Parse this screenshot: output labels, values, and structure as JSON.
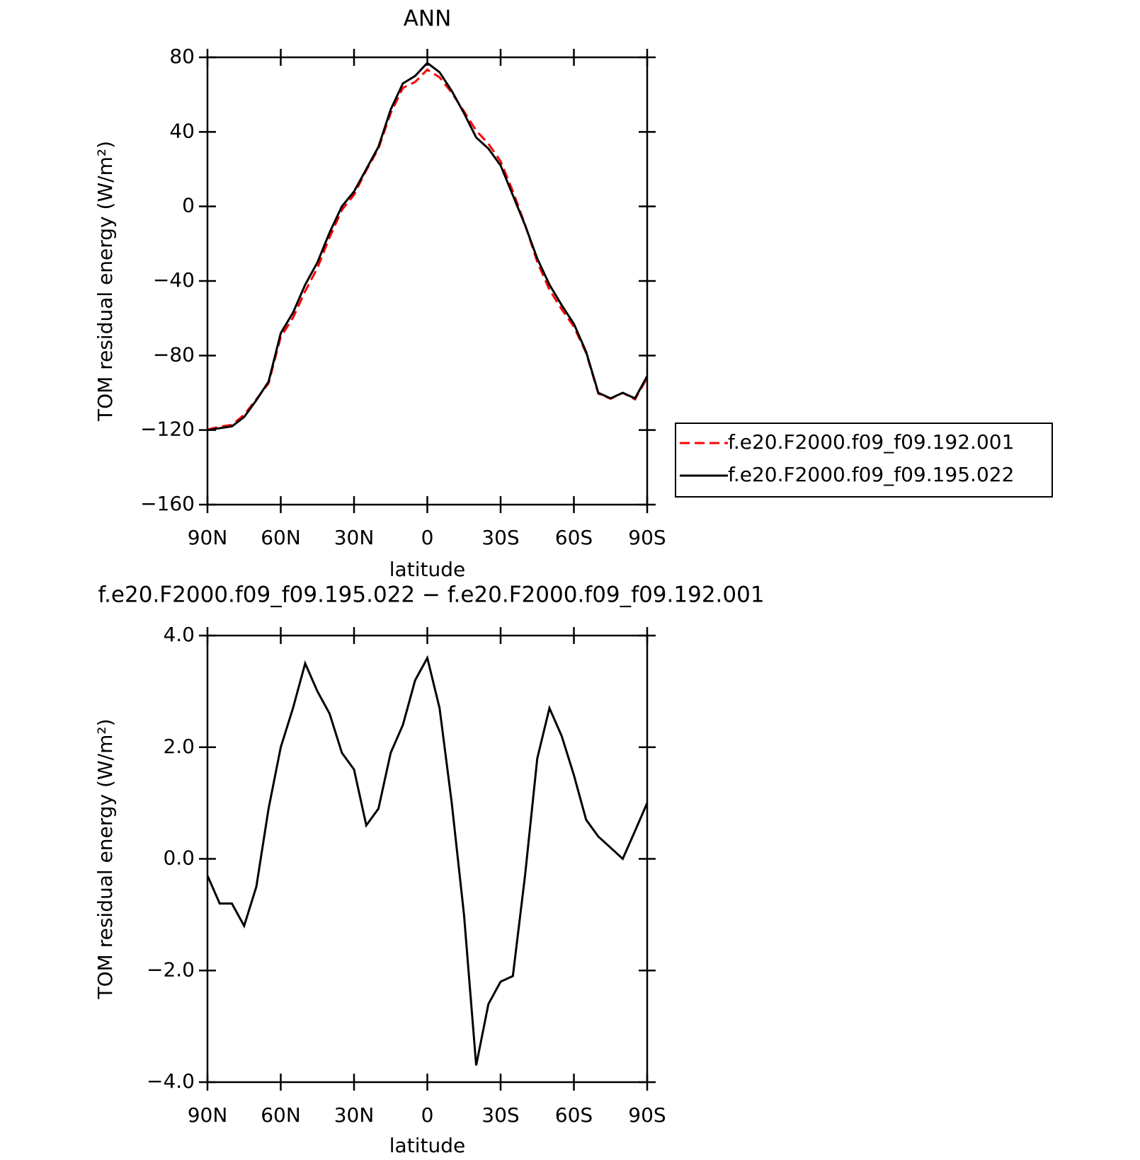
{
  "chart_data": [
    {
      "type": "line",
      "title": "ANN",
      "xlabel": "latitude",
      "ylabel": "TOM residual energy (W/m²)",
      "x": [
        90,
        85,
        80,
        75,
        70,
        65,
        60,
        55,
        50,
        45,
        40,
        35,
        30,
        25,
        20,
        15,
        10,
        5,
        0,
        -5,
        -10,
        -15,
        -20,
        -25,
        -30,
        -35,
        -40,
        -45,
        -50,
        -55,
        -60,
        -65,
        -70,
        -75,
        -80,
        -85,
        -90
      ],
      "xlim": [
        90,
        -90
      ],
      "xticks": [
        {
          "value": 90,
          "label": "90N"
        },
        {
          "value": 60,
          "label": "60N"
        },
        {
          "value": 30,
          "label": "30N"
        },
        0,
        {
          "value": -30,
          "label": "30S"
        },
        {
          "value": -60,
          "label": "60S"
        },
        {
          "value": -90,
          "label": "90S"
        }
      ],
      "ylim": [
        -160,
        80
      ],
      "yticks": [
        {
          "value": -160,
          "label": "−160"
        },
        {
          "value": -120,
          "label": "−120"
        },
        {
          "value": -80,
          "label": "−80"
        },
        {
          "value": -40,
          "label": "−40"
        },
        0,
        40,
        80
      ],
      "legend": "right",
      "series": [
        {
          "name": "f.e20.F2000.f09_f09.192.001",
          "color": "#ff0000",
          "dashed": true,
          "values": [
            -119.7,
            -118.2,
            -117.2,
            -111.8,
            -103.5,
            -94.9,
            -70,
            -59.7,
            -45.5,
            -33,
            -16.6,
            -1.9,
            6.2,
            19.4,
            31.1,
            50.1,
            63.6,
            66.8,
            73.4,
            69.3,
            61,
            51,
            40.7,
            33.6,
            24.2,
            8.1,
            -9.7,
            -29.8,
            -44.7,
            -55.2,
            -64.5,
            -78.7,
            -100.4,
            -103.2,
            -100,
            -103.5,
            -92
          ]
        },
        {
          "name": "f.e20.F2000.f09_f09.195.022",
          "color": "#000000",
          "dashed": false,
          "values": [
            -120,
            -119,
            -118,
            -113,
            -104,
            -94,
            -68,
            -57,
            -42,
            -30,
            -14,
            0,
            8,
            20,
            32,
            52,
            66,
            70,
            77,
            72,
            62,
            50,
            37,
            31,
            22,
            6,
            -10,
            -28,
            -42,
            -53,
            -63,
            -78,
            -100,
            -103,
            -100,
            -103,
            -91
          ]
        }
      ]
    },
    {
      "type": "line",
      "title": "f.e20.F2000.f09_f09.195.022 − f.e20.F2000.f09_f09.192.001",
      "xlabel": "latitude",
      "ylabel": "TOM residual energy (W/m²)",
      "x": [
        90,
        85,
        80,
        75,
        70,
        65,
        60,
        55,
        50,
        45,
        40,
        35,
        30,
        25,
        20,
        15,
        10,
        5,
        0,
        -5,
        -10,
        -15,
        -20,
        -25,
        -30,
        -35,
        -40,
        -45,
        -50,
        -55,
        -60,
        -65,
        -70,
        -75,
        -80,
        -85,
        -90
      ],
      "xlim": [
        90,
        -90
      ],
      "xticks": [
        {
          "value": 90,
          "label": "90N"
        },
        {
          "value": 60,
          "label": "60N"
        },
        {
          "value": 30,
          "label": "30N"
        },
        0,
        {
          "value": -30,
          "label": "30S"
        },
        {
          "value": -60,
          "label": "60S"
        },
        {
          "value": -90,
          "label": "90S"
        }
      ],
      "ylim": [
        -4,
        4
      ],
      "yticks": [
        {
          "value": -4,
          "label": "−4.0"
        },
        {
          "value": -2,
          "label": "−2.0"
        },
        {
          "value": 0,
          "label": "0.0"
        },
        {
          "value": 2,
          "label": "2.0"
        },
        {
          "value": 4,
          "label": "4.0"
        }
      ],
      "series": [
        {
          "color": "#000000",
          "dashed": false,
          "values": [
            -0.3,
            -0.8,
            -0.8,
            -1.2,
            -0.5,
            0.9,
            2.0,
            2.7,
            3.5,
            3.0,
            2.6,
            1.9,
            1.6,
            0.6,
            0.9,
            1.9,
            2.4,
            3.2,
            3.6,
            2.7,
            1.0,
            -1.0,
            -3.7,
            -2.6,
            -2.2,
            -2.1,
            -0.3,
            1.8,
            2.7,
            2.2,
            1.5,
            0.7,
            0.4,
            0.2,
            0.0,
            0.5,
            1.0
          ]
        }
      ]
    }
  ]
}
